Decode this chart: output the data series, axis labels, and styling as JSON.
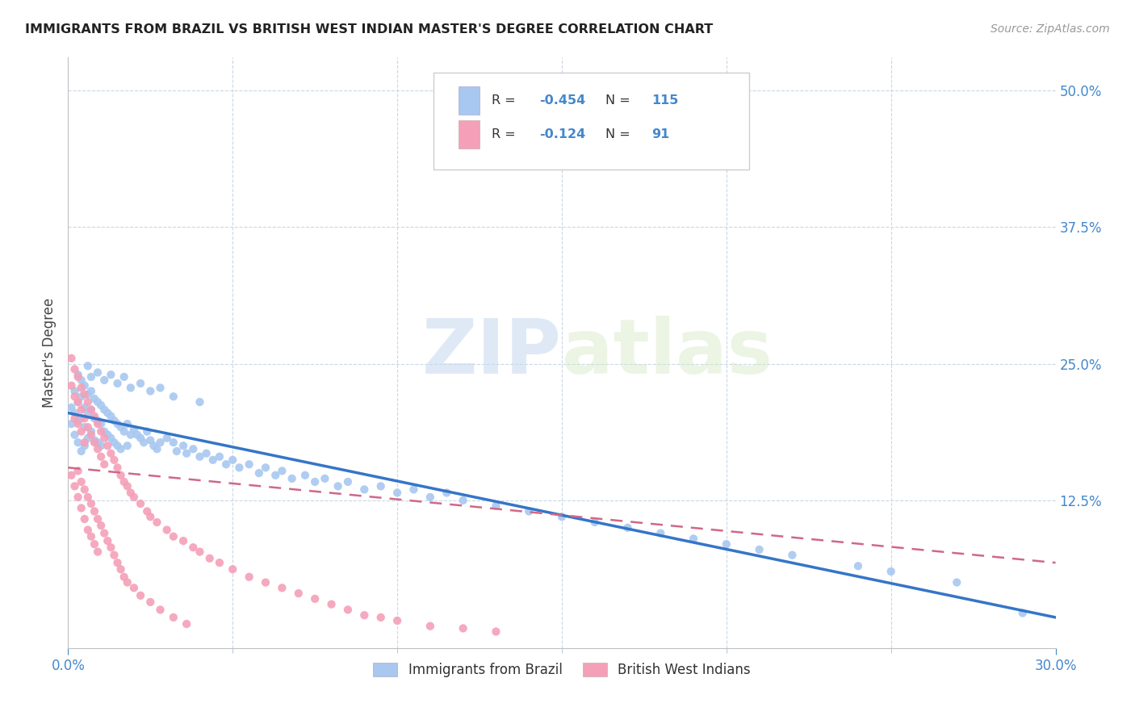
{
  "title": "IMMIGRANTS FROM BRAZIL VS BRITISH WEST INDIAN MASTER'S DEGREE CORRELATION CHART",
  "source": "Source: ZipAtlas.com",
  "ylabel": "Master's Degree",
  "ytick_labels": [
    "12.5%",
    "25.0%",
    "37.5%",
    "50.0%"
  ],
  "ytick_values": [
    0.125,
    0.25,
    0.375,
    0.5
  ],
  "xlim": [
    0.0,
    0.3
  ],
  "ylim": [
    -0.01,
    0.53
  ],
  "brazil_color": "#a8c8f0",
  "brazil_line_color": "#3575c8",
  "bwi_color": "#f4a0b8",
  "bwi_line_color": "#d06888",
  "brazil_R": -0.454,
  "brazil_N": 115,
  "bwi_R": -0.124,
  "bwi_N": 91,
  "watermark_zip": "ZIP",
  "watermark_atlas": "atlas",
  "legend_label_brazil": "Immigrants from Brazil",
  "legend_label_bwi": "British West Indians",
  "brazil_line_x0": 0.0,
  "brazil_line_y0": 0.205,
  "brazil_line_x1": 0.3,
  "brazil_line_y1": 0.018,
  "bwi_line_x0": 0.0,
  "bwi_line_y0": 0.155,
  "bwi_line_x1": 0.3,
  "bwi_line_y1": 0.068,
  "brazil_scatter_x": [
    0.001,
    0.001,
    0.002,
    0.002,
    0.002,
    0.003,
    0.003,
    0.003,
    0.004,
    0.004,
    0.004,
    0.005,
    0.005,
    0.005,
    0.005,
    0.006,
    0.006,
    0.006,
    0.007,
    0.007,
    0.007,
    0.008,
    0.008,
    0.008,
    0.009,
    0.009,
    0.009,
    0.01,
    0.01,
    0.01,
    0.011,
    0.011,
    0.012,
    0.012,
    0.013,
    0.013,
    0.014,
    0.014,
    0.015,
    0.015,
    0.016,
    0.016,
    0.017,
    0.018,
    0.018,
    0.019,
    0.02,
    0.021,
    0.022,
    0.023,
    0.024,
    0.025,
    0.026,
    0.027,
    0.028,
    0.03,
    0.032,
    0.033,
    0.035,
    0.036,
    0.038,
    0.04,
    0.042,
    0.044,
    0.046,
    0.048,
    0.05,
    0.052,
    0.055,
    0.058,
    0.06,
    0.063,
    0.065,
    0.068,
    0.072,
    0.075,
    0.078,
    0.082,
    0.085,
    0.09,
    0.095,
    0.1,
    0.105,
    0.11,
    0.115,
    0.12,
    0.13,
    0.14,
    0.15,
    0.16,
    0.17,
    0.18,
    0.19,
    0.2,
    0.21,
    0.22,
    0.24,
    0.25,
    0.27,
    0.29,
    0.003,
    0.004,
    0.006,
    0.007,
    0.009,
    0.011,
    0.013,
    0.015,
    0.017,
    0.019,
    0.022,
    0.025,
    0.028,
    0.032,
    0.04
  ],
  "brazil_scatter_y": [
    0.21,
    0.195,
    0.225,
    0.205,
    0.185,
    0.215,
    0.198,
    0.178,
    0.22,
    0.2,
    0.17,
    0.23,
    0.21,
    0.192,
    0.175,
    0.222,
    0.205,
    0.182,
    0.225,
    0.208,
    0.188,
    0.218,
    0.2,
    0.18,
    0.215,
    0.198,
    0.178,
    0.212,
    0.195,
    0.175,
    0.208,
    0.188,
    0.205,
    0.185,
    0.202,
    0.182,
    0.198,
    0.178,
    0.195,
    0.175,
    0.192,
    0.172,
    0.188,
    0.195,
    0.175,
    0.185,
    0.19,
    0.185,
    0.182,
    0.178,
    0.188,
    0.18,
    0.175,
    0.172,
    0.178,
    0.182,
    0.178,
    0.17,
    0.175,
    0.168,
    0.172,
    0.165,
    0.168,
    0.162,
    0.165,
    0.158,
    0.162,
    0.155,
    0.158,
    0.15,
    0.155,
    0.148,
    0.152,
    0.145,
    0.148,
    0.142,
    0.145,
    0.138,
    0.142,
    0.135,
    0.138,
    0.132,
    0.135,
    0.128,
    0.132,
    0.125,
    0.12,
    0.115,
    0.11,
    0.105,
    0.1,
    0.095,
    0.09,
    0.085,
    0.08,
    0.075,
    0.065,
    0.06,
    0.05,
    0.022,
    0.24,
    0.235,
    0.248,
    0.238,
    0.242,
    0.235,
    0.24,
    0.232,
    0.238,
    0.228,
    0.232,
    0.225,
    0.228,
    0.22,
    0.215
  ],
  "bwi_scatter_x": [
    0.001,
    0.001,
    0.002,
    0.002,
    0.002,
    0.003,
    0.003,
    0.003,
    0.004,
    0.004,
    0.004,
    0.005,
    0.005,
    0.005,
    0.006,
    0.006,
    0.007,
    0.007,
    0.008,
    0.008,
    0.009,
    0.009,
    0.01,
    0.01,
    0.011,
    0.011,
    0.012,
    0.013,
    0.014,
    0.015,
    0.016,
    0.017,
    0.018,
    0.019,
    0.02,
    0.022,
    0.024,
    0.025,
    0.027,
    0.03,
    0.032,
    0.035,
    0.038,
    0.04,
    0.043,
    0.046,
    0.05,
    0.055,
    0.06,
    0.065,
    0.07,
    0.075,
    0.08,
    0.085,
    0.09,
    0.095,
    0.1,
    0.11,
    0.12,
    0.13,
    0.001,
    0.002,
    0.003,
    0.003,
    0.004,
    0.004,
    0.005,
    0.005,
    0.006,
    0.006,
    0.007,
    0.007,
    0.008,
    0.008,
    0.009,
    0.009,
    0.01,
    0.011,
    0.012,
    0.013,
    0.014,
    0.015,
    0.016,
    0.017,
    0.018,
    0.02,
    0.022,
    0.025,
    0.028,
    0.032,
    0.036
  ],
  "bwi_scatter_y": [
    0.255,
    0.23,
    0.245,
    0.22,
    0.2,
    0.238,
    0.215,
    0.195,
    0.228,
    0.208,
    0.188,
    0.222,
    0.2,
    0.178,
    0.215,
    0.192,
    0.208,
    0.185,
    0.202,
    0.178,
    0.195,
    0.172,
    0.188,
    0.165,
    0.182,
    0.158,
    0.175,
    0.168,
    0.162,
    0.155,
    0.148,
    0.142,
    0.138,
    0.132,
    0.128,
    0.122,
    0.115,
    0.11,
    0.105,
    0.098,
    0.092,
    0.088,
    0.082,
    0.078,
    0.072,
    0.068,
    0.062,
    0.055,
    0.05,
    0.045,
    0.04,
    0.035,
    0.03,
    0.025,
    0.02,
    0.018,
    0.015,
    0.01,
    0.008,
    0.005,
    0.148,
    0.138,
    0.152,
    0.128,
    0.142,
    0.118,
    0.135,
    0.108,
    0.128,
    0.098,
    0.122,
    0.092,
    0.115,
    0.085,
    0.108,
    0.078,
    0.102,
    0.095,
    0.088,
    0.082,
    0.075,
    0.068,
    0.062,
    0.055,
    0.05,
    0.045,
    0.038,
    0.032,
    0.025,
    0.018,
    0.012
  ]
}
